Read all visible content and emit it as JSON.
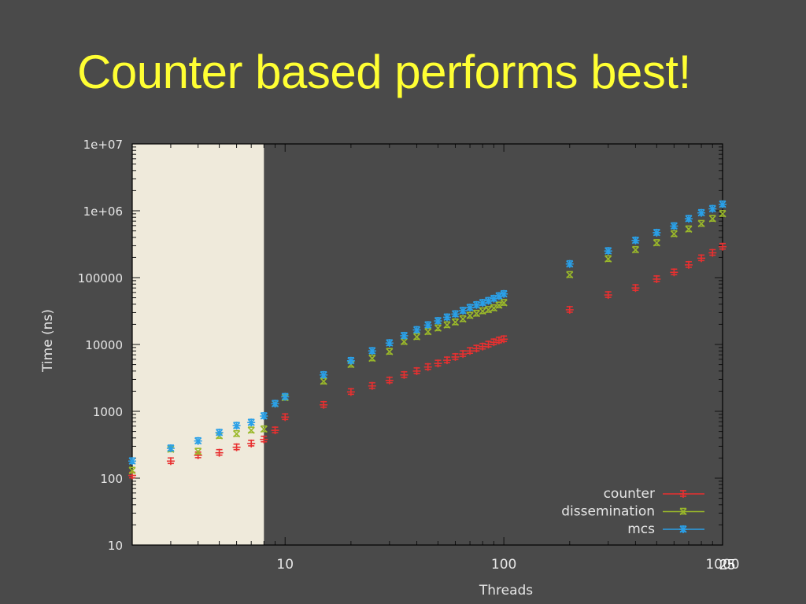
{
  "slide": {
    "title": "Counter based performs best!",
    "title_color": "#ffff33",
    "background_color": "#4a4a4a",
    "page_number": "25"
  },
  "chart_data": {
    "type": "scatter",
    "xlabel": "Threads",
    "ylabel": "Time (ns)",
    "x_scale": "log",
    "y_scale": "log",
    "xlim": [
      2,
      1000
    ],
    "ylim": [
      10,
      10000000
    ],
    "x_tick_labels": [
      "10",
      "100",
      "1000"
    ],
    "y_tick_labels": [
      "10",
      "100",
      "1000",
      "10000",
      "100000",
      "1e+06",
      "1e+07"
    ],
    "highlight_region": {
      "x_from": 2,
      "x_to": 8,
      "color": "#efeadb"
    },
    "legend_position": "bottom-right",
    "grid": false,
    "series": [
      {
        "name": "counter",
        "color": "#e83030",
        "marker": "plus",
        "x": [
          2,
          3,
          4,
          5,
          6,
          7,
          8,
          9,
          10,
          15,
          20,
          25,
          30,
          35,
          40,
          45,
          50,
          55,
          60,
          65,
          70,
          75,
          80,
          85,
          90,
          95,
          100,
          200,
          300,
          400,
          500,
          600,
          700,
          800,
          900,
          1000
        ],
        "y": [
          110,
          180,
          220,
          240,
          290,
          330,
          380,
          520,
          820,
          1250,
          1950,
          2400,
          2900,
          3500,
          4000,
          4600,
          5200,
          5800,
          6500,
          7200,
          8000,
          8700,
          9300,
          10000,
          10800,
          11500,
          12000,
          33000,
          55000,
          70000,
          95000,
          120000,
          155000,
          195000,
          235000,
          290000
        ]
      },
      {
        "name": "dissemination",
        "color": "#9ab82a",
        "marker": "x",
        "x": [
          2,
          3,
          4,
          5,
          6,
          7,
          8,
          9,
          10,
          15,
          20,
          25,
          30,
          35,
          40,
          45,
          50,
          55,
          60,
          65,
          70,
          75,
          80,
          85,
          90,
          95,
          100,
          200,
          300,
          400,
          500,
          600,
          700,
          800,
          900,
          1000
        ],
        "y": [
          130,
          270,
          250,
          430,
          460,
          520,
          540,
          1300,
          1600,
          2800,
          5000,
          6200,
          7800,
          11000,
          13000,
          15500,
          17500,
          19500,
          21500,
          24000,
          27000,
          29000,
          31500,
          33000,
          35000,
          38500,
          42000,
          110000,
          190000,
          260000,
          330000,
          450000,
          530000,
          640000,
          760000,
          900000
        ]
      },
      {
        "name": "mcs",
        "color": "#2aa0e8",
        "marker": "star",
        "x": [
          2,
          3,
          4,
          5,
          6,
          7,
          8,
          9,
          10,
          15,
          20,
          25,
          30,
          35,
          40,
          45,
          50,
          55,
          60,
          65,
          70,
          75,
          80,
          85,
          90,
          95,
          100,
          200,
          300,
          400,
          500,
          600,
          700,
          800,
          900,
          1000
        ],
        "y": [
          180,
          280,
          360,
          480,
          610,
          680,
          850,
          1300,
          1650,
          3500,
          5700,
          8000,
          10500,
          13500,
          16500,
          19500,
          22500,
          25500,
          28500,
          32000,
          35500,
          39000,
          42000,
          45000,
          48500,
          53000,
          57000,
          160000,
          250000,
          360000,
          470000,
          590000,
          760000,
          930000,
          1070000,
          1250000
        ]
      }
    ]
  }
}
